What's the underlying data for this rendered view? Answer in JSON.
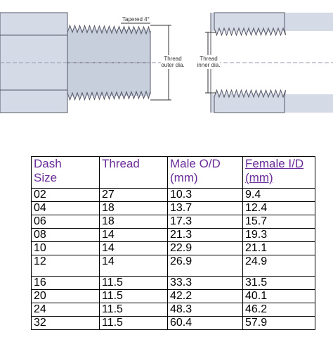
{
  "diagram": {
    "taper_label": "Tapered 4°",
    "outer_label": [
      "Thread",
      "outer dia."
    ],
    "inner_label": [
      "Thread",
      "inner dia."
    ]
  },
  "table": {
    "headers": [
      [
        "Dash",
        "Size"
      ],
      [
        "Thread"
      ],
      [
        "Male O/D",
        "(mm)"
      ],
      [
        "Female I/D",
        "(mm)"
      ]
    ],
    "rows": [
      [
        "02",
        "27",
        "10.3",
        "9.4"
      ],
      [
        "04",
        "18",
        "13.7",
        "12.4"
      ],
      [
        "06",
        "18",
        "17.3",
        "15.7"
      ],
      [
        "08",
        "14",
        "21.3",
        "19.3"
      ],
      [
        "10",
        "14",
        "22.9",
        "21.1"
      ],
      [
        "12",
        "14",
        "26.9",
        "24.9"
      ],
      [
        "16",
        "11.5",
        "33.3",
        "31.5"
      ],
      [
        "20",
        "11.5",
        "42.2",
        "40.1"
      ],
      [
        "24",
        "11.5",
        "48.3",
        "46.2"
      ],
      [
        "32",
        "11.5",
        "60.4",
        "57.9"
      ]
    ]
  }
}
